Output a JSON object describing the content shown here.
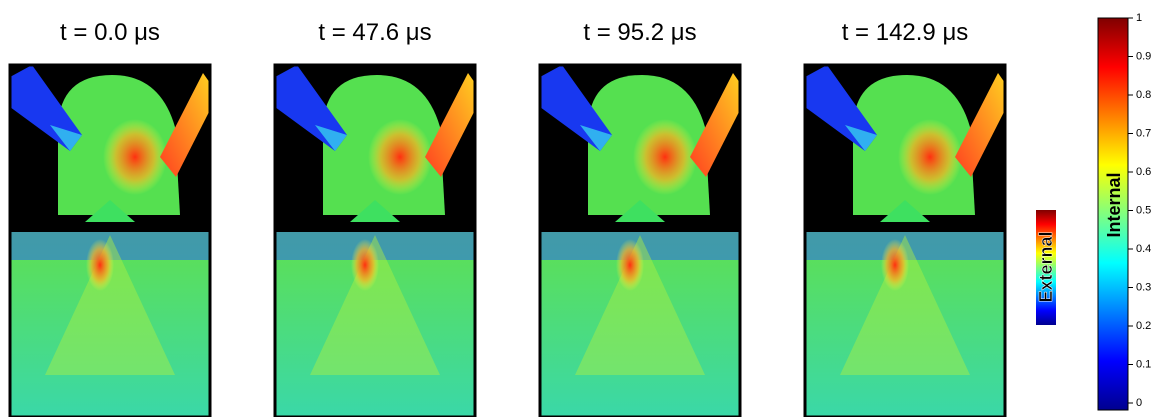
{
  "panels": [
    {
      "title": "t = 0.0 μs"
    },
    {
      "title": "t = 47.6 μs"
    },
    {
      "title": "t = 95.2 μs"
    },
    {
      "title": "t = 142.9 μs"
    }
  ],
  "external_bar": {
    "label": "External"
  },
  "internal_bar": {
    "label": "Internal",
    "ticks": [
      0,
      0.1,
      0.2,
      0.3,
      0.4,
      0.5,
      0.6,
      0.7,
      0.8,
      0.9,
      1
    ]
  }
}
